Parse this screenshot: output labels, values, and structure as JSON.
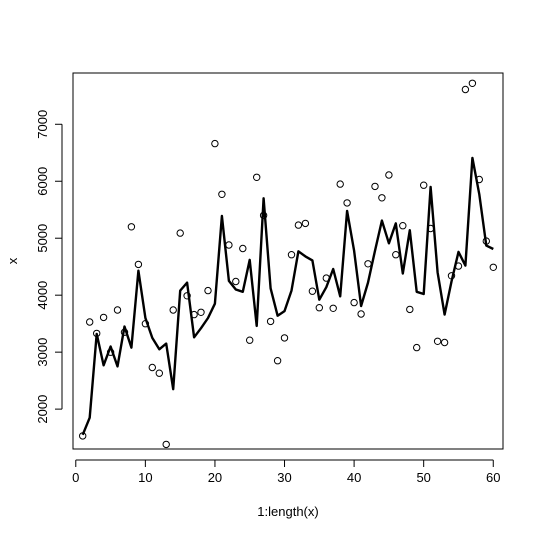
{
  "chart_data": {
    "type": "scatter",
    "xlabel": "1:length(x)",
    "ylabel": "x",
    "xlim": [
      -0.4,
      61.4
    ],
    "ylim": [
      1300,
      7900
    ],
    "x_ticks": [
      0,
      10,
      20,
      30,
      40,
      50,
      60
    ],
    "y_ticks": [
      2000,
      3000,
      4000,
      5000,
      6000,
      7000
    ],
    "grid": false,
    "series": [
      {
        "kind": "points",
        "x": [
          1,
          2,
          3,
          4,
          5,
          6,
          7,
          8,
          9,
          10,
          11,
          12,
          13,
          14,
          15,
          16,
          17,
          18,
          19,
          20,
          21,
          22,
          23,
          24,
          25,
          26,
          27,
          28,
          29,
          30,
          31,
          32,
          33,
          34,
          35,
          36,
          37,
          38,
          39,
          40,
          41,
          42,
          43,
          44,
          45,
          46,
          47,
          48,
          49,
          50,
          51,
          52,
          53,
          54,
          55,
          56,
          57,
          58,
          59,
          60
        ],
        "values": [
          1530,
          3530,
          3330,
          3610,
          3000,
          3740,
          3350,
          5200,
          4540,
          3500,
          2730,
          2630,
          1380,
          3740,
          5090,
          3990,
          3660,
          3700,
          4080,
          6660,
          5770,
          4880,
          4240,
          4820,
          3210,
          6070,
          5400,
          3540,
          2850,
          3250,
          4710,
          5230,
          5260,
          4070,
          3780,
          4300,
          3770,
          5950,
          5620,
          3870,
          3670,
          4550,
          5910,
          5710,
          6110,
          4710,
          5220,
          3750,
          3080,
          5930,
          5170,
          3190,
          3170,
          4340,
          4510,
          7610,
          7720,
          6030,
          4950,
          4490
        ]
      },
      {
        "kind": "line",
        "x": [
          1,
          2,
          3,
          4,
          5,
          6,
          7,
          8,
          9,
          10,
          11,
          12,
          13,
          14,
          15,
          16,
          17,
          18,
          19,
          20,
          21,
          22,
          23,
          24,
          25,
          26,
          27,
          28,
          29,
          30,
          31,
          32,
          33,
          34,
          35,
          36,
          37,
          38,
          39,
          40,
          41,
          42,
          43,
          44,
          45,
          46,
          47,
          48,
          49,
          50,
          51,
          52,
          53,
          54,
          55,
          56,
          57,
          58,
          59,
          60
        ],
        "values": [
          1550,
          1850,
          3320,
          2770,
          3100,
          2750,
          3450,
          3080,
          4430,
          3600,
          3250,
          3050,
          3150,
          2350,
          4080,
          4220,
          3260,
          3420,
          3600,
          3850,
          5390,
          4250,
          4100,
          4060,
          4620,
          3460,
          5700,
          4120,
          3640,
          3720,
          4080,
          4770,
          4680,
          4610,
          3920,
          4140,
          4460,
          3980,
          5480,
          4780,
          3810,
          4220,
          4780,
          5310,
          4910,
          5260,
          4380,
          5140,
          4060,
          4020,
          5900,
          4400,
          3660,
          4240,
          4760,
          4520,
          6410,
          5770,
          4870,
          4810
        ]
      }
    ]
  }
}
